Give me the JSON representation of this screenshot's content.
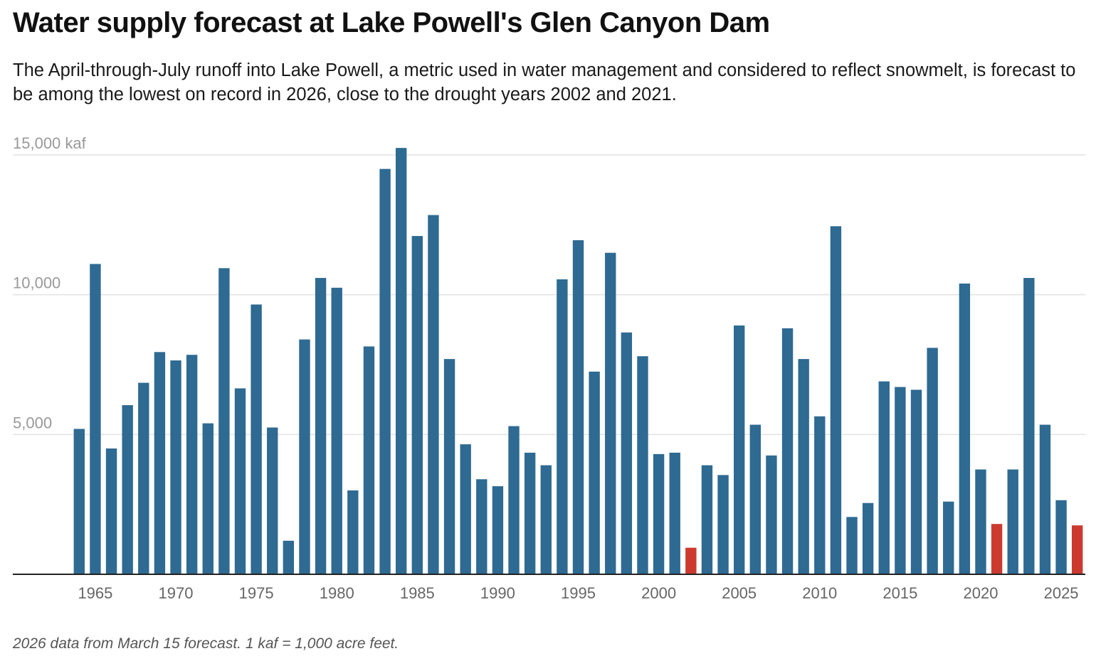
{
  "header": {
    "title": "Water supply forecast at Lake Powell's Glen Canyon Dam",
    "subtitle": "The April-through-July runoff into Lake Powell, a metric used in water management and considered to reflect snowmelt, is forecast to be among the lowest on record in 2026, close to the drought years 2002 and 2021."
  },
  "footer": {
    "note": "2026 data from March 15 forecast. 1 kaf = 1,000 acre feet."
  },
  "colors": {
    "bar": "#2e6a92",
    "highlight": "#cc3a2f",
    "grid": "#e2e2e2",
    "axis": "#222222",
    "tick_text": "#666666",
    "ytick_text": "#999999"
  },
  "chart_data": {
    "type": "bar",
    "title": "Water supply forecast at Lake Powell's Glen Canyon Dam",
    "xlabel": "",
    "ylabel": "",
    "y_unit": "kaf",
    "ylim": [
      0,
      15000
    ],
    "y_ticks": [
      {
        "value": 5000,
        "label": "5,000"
      },
      {
        "value": 10000,
        "label": "10,000"
      },
      {
        "value": 15000,
        "label": "15,000 kaf"
      }
    ],
    "x_ticks": [
      1965,
      1970,
      1975,
      1980,
      1985,
      1990,
      1995,
      2000,
      2005,
      2010,
      2015,
      2020,
      2025
    ],
    "grid": true,
    "legend": "none",
    "highlighted_years": [
      2002,
      2021,
      2026
    ],
    "categories": [
      1964,
      1965,
      1966,
      1967,
      1968,
      1969,
      1970,
      1971,
      1972,
      1973,
      1974,
      1975,
      1976,
      1977,
      1978,
      1979,
      1980,
      1981,
      1982,
      1983,
      1984,
      1985,
      1986,
      1987,
      1988,
      1989,
      1990,
      1991,
      1992,
      1993,
      1994,
      1995,
      1996,
      1997,
      1998,
      1999,
      2000,
      2001,
      2002,
      2003,
      2004,
      2005,
      2006,
      2007,
      2008,
      2009,
      2010,
      2011,
      2012,
      2013,
      2014,
      2015,
      2016,
      2017,
      2018,
      2019,
      2020,
      2021,
      2022,
      2023,
      2024,
      2025,
      2026
    ],
    "values": [
      5200,
      11100,
      4500,
      6050,
      6850,
      7950,
      7650,
      7850,
      5400,
      10950,
      6650,
      9650,
      5250,
      1200,
      8400,
      10600,
      10250,
      3000,
      8150,
      14500,
      15250,
      12100,
      12850,
      7700,
      4650,
      3400,
      3150,
      5300,
      4350,
      3900,
      10550,
      11950,
      7250,
      11500,
      8650,
      7800,
      4300,
      4350,
      950,
      3900,
      3550,
      8900,
      5350,
      4250,
      8800,
      7700,
      5650,
      12450,
      2050,
      2550,
      6900,
      6700,
      6600,
      8100,
      2600,
      10400,
      3750,
      1800,
      3750,
      10600,
      5350,
      2650,
      1750
    ]
  }
}
